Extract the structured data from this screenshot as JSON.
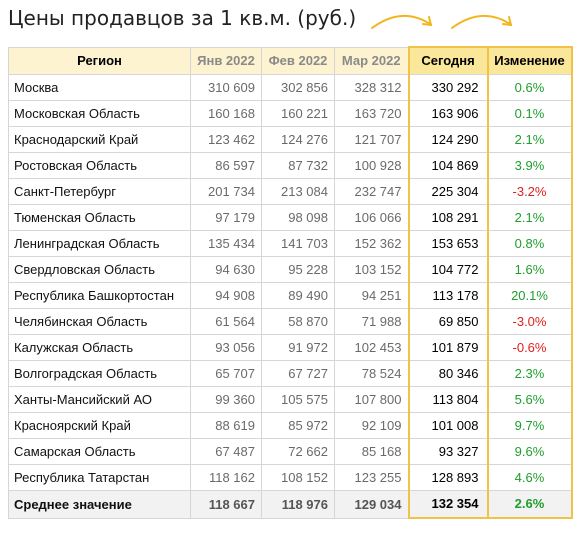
{
  "title": "Цены продавцов за 1 кв.м. (руб.)",
  "colors": {
    "positive": "#1f9e2c",
    "negative": "#e02020",
    "header_bg": "#fdf3d0",
    "accent": "#f0c24a"
  },
  "columns": {
    "region": "Регион",
    "jan": "Янв 2022",
    "feb": "Фев 2022",
    "mar": "Мар 2022",
    "today": "Сегодня",
    "change": "Изменение"
  },
  "rows": [
    {
      "region": "Москва",
      "jan": "310 609",
      "feb": "302 856",
      "mar": "328 312",
      "today": "330 292",
      "change": "0.6%",
      "sign": "pos"
    },
    {
      "region": "Московская Область",
      "jan": "160 168",
      "feb": "160 221",
      "mar": "163 720",
      "today": "163 906",
      "change": "0.1%",
      "sign": "pos"
    },
    {
      "region": "Краснодарский Край",
      "jan": "123 462",
      "feb": "124 276",
      "mar": "121 707",
      "today": "124 290",
      "change": "2.1%",
      "sign": "pos"
    },
    {
      "region": "Ростовская Область",
      "jan": "86 597",
      "feb": "87 732",
      "mar": "100 928",
      "today": "104 869",
      "change": "3.9%",
      "sign": "pos"
    },
    {
      "region": "Санкт-Петербург",
      "jan": "201 734",
      "feb": "213 084",
      "mar": "232 747",
      "today": "225 304",
      "change": "-3.2%",
      "sign": "neg"
    },
    {
      "region": "Тюменская Область",
      "jan": "97 179",
      "feb": "98 098",
      "mar": "106 066",
      "today": "108 291",
      "change": "2.1%",
      "sign": "pos"
    },
    {
      "region": "Ленинградская Область",
      "jan": "135 434",
      "feb": "141 703",
      "mar": "152 362",
      "today": "153 653",
      "change": "0.8%",
      "sign": "pos"
    },
    {
      "region": "Свердловская Область",
      "jan": "94 630",
      "feb": "95 228",
      "mar": "103 152",
      "today": "104 772",
      "change": "1.6%",
      "sign": "pos"
    },
    {
      "region": "Республика Башкортостан",
      "jan": "94 908",
      "feb": "89 490",
      "mar": "94 251",
      "today": "113 178",
      "change": "20.1%",
      "sign": "pos"
    },
    {
      "region": "Челябинская Область",
      "jan": "61 564",
      "feb": "58 870",
      "mar": "71 988",
      "today": "69 850",
      "change": "-3.0%",
      "sign": "neg"
    },
    {
      "region": "Калужская Область",
      "jan": "93 056",
      "feb": "91 972",
      "mar": "102 453",
      "today": "101 879",
      "change": "-0.6%",
      "sign": "neg"
    },
    {
      "region": "Волгоградская Область",
      "jan": "65 707",
      "feb": "67 727",
      "mar": "78 524",
      "today": "80 346",
      "change": "2.3%",
      "sign": "pos"
    },
    {
      "region": "Ханты-Мансийский АО",
      "jan": "99 360",
      "feb": "105 575",
      "mar": "107 800",
      "today": "113 804",
      "change": "5.6%",
      "sign": "pos"
    },
    {
      "region": "Красноярский Край",
      "jan": "88 619",
      "feb": "85 972",
      "mar": "92 109",
      "today": "101 008",
      "change": "9.7%",
      "sign": "pos"
    },
    {
      "region": "Самарская Область",
      "jan": "67 487",
      "feb": "72 662",
      "mar": "85 168",
      "today": "93 327",
      "change": "9.6%",
      "sign": "pos"
    },
    {
      "region": "Республика Татарстан",
      "jan": "118 162",
      "feb": "108 152",
      "mar": "123 255",
      "today": "128 893",
      "change": "4.6%",
      "sign": "pos"
    }
  ],
  "footer": {
    "region": "Среднее значение",
    "jan": "118 667",
    "feb": "118 976",
    "mar": "129 034",
    "today": "132 354",
    "change": "2.6%",
    "sign": "pos"
  },
  "annotation_icons": [
    "curved-arrow-icon",
    "curved-arrow-icon"
  ]
}
